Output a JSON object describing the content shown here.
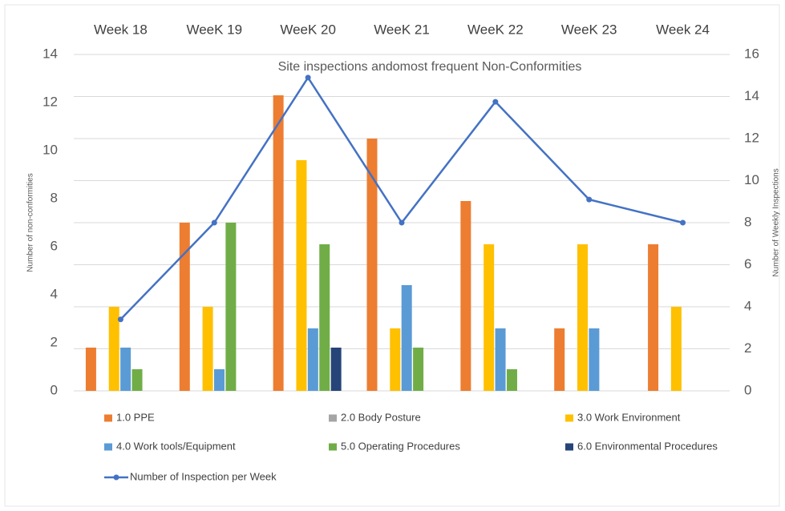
{
  "chart_data": {
    "type": "bar",
    "title": "Site inspections andomost frequent Non-Conformities",
    "y_label": "Number of non-conformities",
    "y2_label": "Number of Weekly Inspections",
    "categories": [
      "Week 18",
      "WeeK 19",
      "WeeK 20",
      "WeeK 21",
      "WeeK 22",
      "WeeK 23",
      "Week 24"
    ],
    "ylim": [
      0,
      14
    ],
    "yticks": [
      0,
      2,
      4,
      6,
      8,
      10,
      12,
      14
    ],
    "y2lim": [
      0,
      16
    ],
    "y2ticks": [
      0,
      2,
      4,
      6,
      8,
      10,
      12,
      14,
      16
    ],
    "grid": true,
    "series": [
      {
        "name": "1.0 PPE",
        "color": "#ed7d31",
        "values": [
          1.8,
          7,
          12.3,
          10.5,
          7.9,
          2.6,
          6.1
        ]
      },
      {
        "name": "2.0 Body Posture",
        "color": "#a5a5a5",
        "values": [
          0,
          0,
          0,
          0,
          0,
          0,
          0
        ]
      },
      {
        "name": "3.0 Work Environment",
        "color": "#ffc000",
        "values": [
          3.5,
          3.5,
          9.6,
          2.6,
          6.1,
          6.1,
          3.5
        ]
      },
      {
        "name": "4.0 Work tools/Equipment",
        "color": "#5b9bd5",
        "values": [
          1.8,
          0.9,
          2.6,
          4.4,
          2.6,
          2.6,
          0
        ]
      },
      {
        "name": "5.0 Operating Procedures",
        "color": "#70ad47",
        "values": [
          0.9,
          7,
          6.1,
          1.8,
          0.9,
          0,
          0
        ]
      },
      {
        "name": "6.0 Environmental Procedures",
        "color": "#264478",
        "values": [
          0,
          0,
          1.8,
          0,
          0,
          0,
          0
        ]
      },
      {
        "name": "Number of Inspection per Week",
        "color": "#4472c4",
        "type": "line",
        "axis": "y2",
        "values": [
          3.4,
          8,
          14.9,
          8,
          13.75,
          9.1,
          8
        ]
      }
    ]
  }
}
